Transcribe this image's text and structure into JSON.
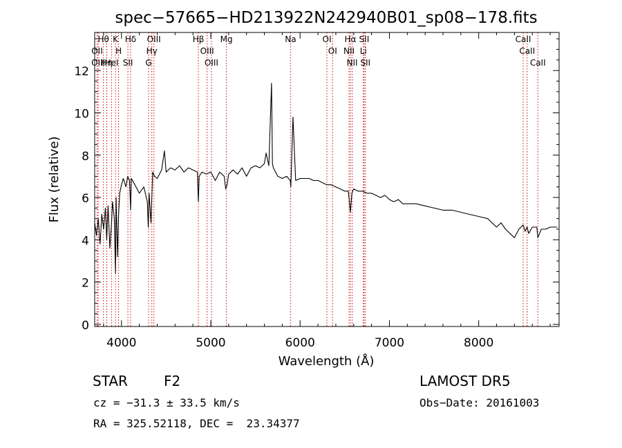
{
  "chart_data": {
    "type": "line",
    "title": "spec−57665−HD213922N242940B01_sp08−178.fits",
    "xlabel": "Wavelength (Å)",
    "ylabel": "Flux (relative)",
    "xlim": [
      3700,
      8900
    ],
    "ylim": [
      -0.1,
      13.8
    ],
    "xticks": [
      4000,
      5000,
      6000,
      7000,
      8000
    ],
    "yticks": [
      0,
      2,
      4,
      6,
      8,
      10,
      12
    ],
    "grid": false,
    "legend": "none",
    "series_color": "#000000",
    "line_color": "#cc0000",
    "series": [
      {
        "x": [
          3700,
          3720,
          3740,
          3760,
          3780,
          3800,
          3820,
          3835,
          3850,
          3870,
          3889,
          3900,
          3920,
          3933,
          3940,
          3955,
          3968,
          3980,
          4000,
          4020,
          4050,
          4070,
          4090,
          4102,
          4110,
          4150,
          4200,
          4250,
          4290,
          4300,
          4310,
          4330,
          4340,
          4350,
          4370,
          4400,
          4450,
          4481,
          4500,
          4550,
          4600,
          4650,
          4700,
          4750,
          4800,
          4850,
          4861,
          4870,
          4900,
          4950,
          5000,
          5050,
          5100,
          5150,
          5167,
          5183,
          5200,
          5250,
          5300,
          5350,
          5400,
          5450,
          5500,
          5550,
          5600,
          5620,
          5650,
          5680,
          5690,
          5700,
          5750,
          5800,
          5850,
          5890,
          5896,
          5900,
          5920,
          5950,
          6000,
          6050,
          6100,
          6150,
          6200,
          6250,
          6300,
          6350,
          6400,
          6450,
          6500,
          6540,
          6563,
          6580,
          6600,
          6650,
          6700,
          6750,
          6800,
          6850,
          6900,
          6950,
          7000,
          7050,
          7100,
          7150,
          7200,
          7300,
          7400,
          7500,
          7600,
          7700,
          7800,
          7900,
          8000,
          8100,
          8200,
          8250,
          8300,
          8350,
          8400,
          8450,
          8498,
          8520,
          8542,
          8560,
          8600,
          8650,
          8662,
          8700,
          8750,
          8800,
          8850,
          8880
        ],
        "y": [
          4.8,
          4.2,
          5.0,
          3.8,
          5.2,
          4.5,
          5.5,
          4.0,
          5.6,
          3.6,
          4.8,
          5.8,
          5.0,
          2.4,
          6.0,
          3.2,
          5.2,
          6.2,
          6.6,
          6.9,
          6.5,
          7.0,
          6.8,
          5.4,
          6.9,
          6.6,
          6.2,
          6.5,
          5.8,
          4.6,
          6.2,
          4.8,
          6.0,
          7.2,
          7.0,
          6.9,
          7.3,
          8.2,
          7.2,
          7.4,
          7.3,
          7.5,
          7.2,
          7.4,
          7.3,
          7.2,
          5.8,
          7.0,
          7.2,
          7.1,
          7.2,
          6.8,
          7.2,
          7.0,
          6.4,
          6.6,
          7.1,
          7.3,
          7.1,
          7.4,
          7.0,
          7.4,
          7.5,
          7.4,
          7.6,
          8.1,
          7.5,
          11.4,
          7.6,
          7.4,
          7.0,
          6.9,
          7.0,
          6.8,
          6.5,
          7.0,
          9.8,
          6.8,
          6.9,
          6.9,
          6.9,
          6.8,
          6.8,
          6.7,
          6.6,
          6.6,
          6.5,
          6.4,
          6.3,
          6.3,
          5.3,
          6.2,
          6.4,
          6.3,
          6.3,
          6.2,
          6.2,
          6.1,
          6.0,
          6.1,
          5.9,
          5.8,
          5.9,
          5.7,
          5.7,
          5.7,
          5.6,
          5.5,
          5.4,
          5.4,
          5.3,
          5.2,
          5.1,
          5.0,
          4.6,
          4.8,
          4.5,
          4.3,
          4.1,
          4.5,
          4.7,
          4.4,
          4.6,
          4.3,
          4.6,
          4.6,
          4.1,
          4.5,
          4.5,
          4.6,
          4.6,
          4.6
        ]
      }
    ],
    "annotations": [
      {
        "label": "Hθ",
        "x": 3798
      },
      {
        "label": "OII",
        "x": 3727
      },
      {
        "label": "OIII",
        "x": 3740
      },
      {
        "label": "Hη",
        "x": 3835
      },
      {
        "label": "HeI",
        "x": 3889
      },
      {
        "label": "K",
        "x": 3933
      },
      {
        "label": "H",
        "x": 3968
      },
      {
        "label": "Hδ",
        "x": 4102
      },
      {
        "label": "SII",
        "x": 4072
      },
      {
        "label": "OIII",
        "x": 4363
      },
      {
        "label": "Hγ",
        "x": 4340
      },
      {
        "label": "G",
        "x": 4304
      },
      {
        "label": "Hβ",
        "x": 4861
      },
      {
        "label": "OIII",
        "x": 4959
      },
      {
        "label": "OIII",
        "x": 5007
      },
      {
        "label": "Mg",
        "x": 5175
      },
      {
        "label": "Na",
        "x": 5893
      },
      {
        "label": "OI",
        "x": 6300
      },
      {
        "label": "OI",
        "x": 6364
      },
      {
        "label": "Hα",
        "x": 6563
      },
      {
        "label": "NII",
        "x": 6548
      },
      {
        "label": "NII",
        "x": 6583
      },
      {
        "label": "SII",
        "x": 6717
      },
      {
        "label": "Li",
        "x": 6708
      },
      {
        "label": "SII",
        "x": 6731
      },
      {
        "label": "CaII",
        "x": 8498
      },
      {
        "label": "CaII",
        "x": 8542
      },
      {
        "label": "CaII",
        "x": 8662
      }
    ]
  },
  "info": {
    "star_label": "STAR",
    "spectral_type": "F2",
    "survey": "LAMOST DR5",
    "cz_text": "cz = −31.3 ± 33.5 km/s",
    "obs_date": "Obs−Date: 20161003",
    "coords": "RA = 325.52118, DEC =  23.34377"
  }
}
